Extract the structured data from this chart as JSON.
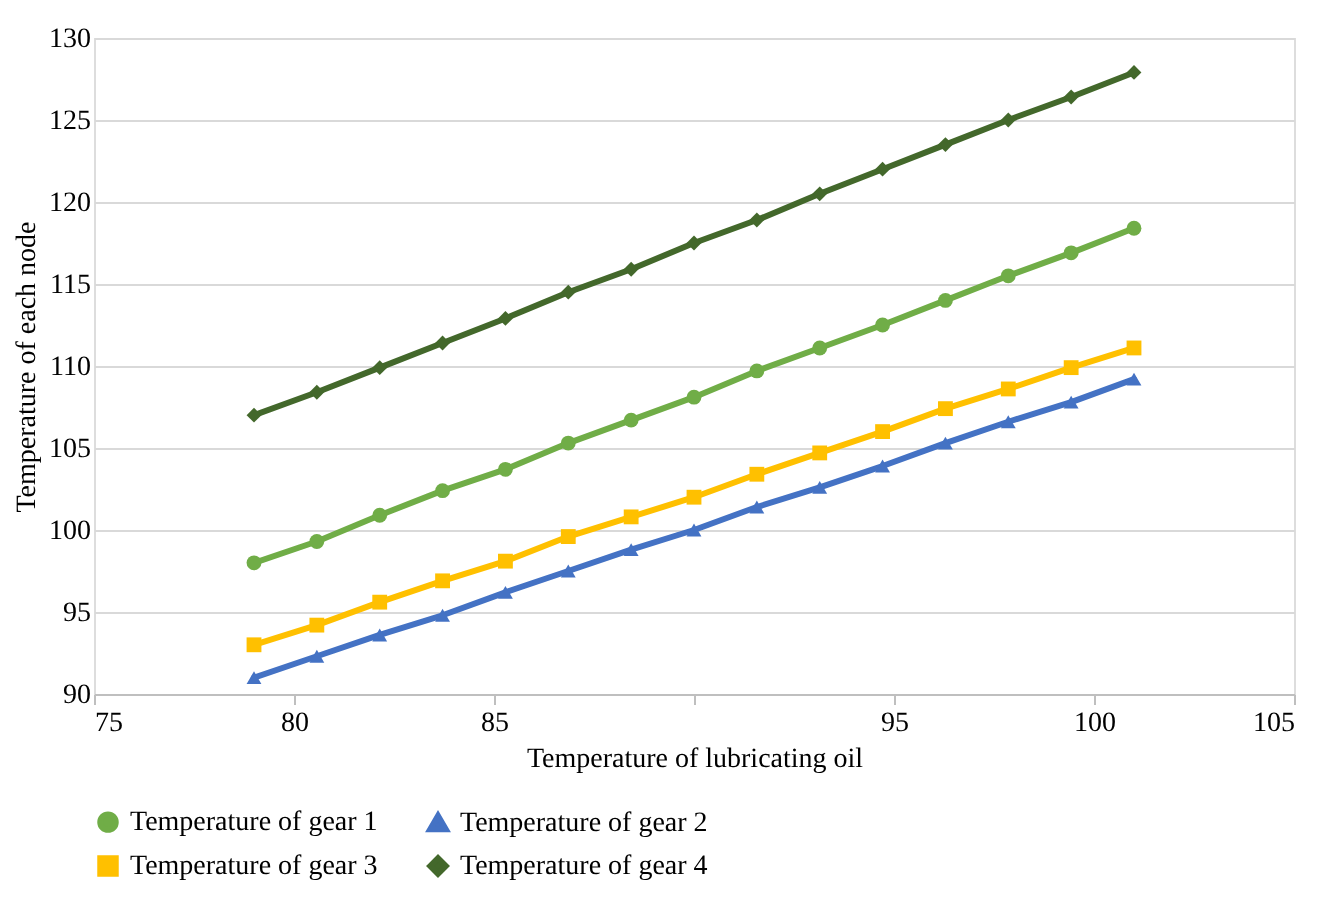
{
  "chart_data": {
    "type": "line",
    "xlabel": "Temperature of lubricating oil",
    "ylabel": "Temperature of each node",
    "x": [
      79,
      80.571,
      82.143,
      83.714,
      85.286,
      86.857,
      88.429,
      90,
      91.571,
      93.143,
      94.714,
      96.286,
      97.857,
      99.429,
      101
    ],
    "xlim": [
      75,
      105
    ],
    "xticks": [
      75,
      80,
      85,
      {
        "value": 90,
        "label": null
      },
      95,
      100,
      105
    ],
    "ylim": [
      90,
      130
    ],
    "yticks": [
      90,
      95,
      100,
      105,
      110,
      115,
      120,
      125,
      130
    ],
    "grid": "y",
    "legend": "bottom",
    "line_style": "solid",
    "series": [
      {
        "name": "Temperature of gear 1",
        "color": "#70ad47",
        "marker": "circle",
        "values": [
          98.0,
          99.3,
          100.9,
          102.4,
          103.7,
          105.3,
          106.7,
          108.1,
          109.7,
          111.1,
          112.5,
          114.0,
          115.5,
          116.9,
          118.4
        ]
      },
      {
        "name": "Temperature of gear 2",
        "color": "#4472c4",
        "marker": "triangle",
        "values": [
          91.0,
          92.3,
          93.6,
          94.8,
          96.2,
          97.5,
          98.8,
          100.0,
          101.4,
          102.6,
          103.9,
          105.3,
          106.6,
          107.8,
          109.2
        ]
      },
      {
        "name": "Temperature of gear 3",
        "color": "#ffc000",
        "marker": "square",
        "values": [
          93.0,
          94.2,
          95.6,
          96.9,
          98.1,
          99.6,
          100.8,
          102.0,
          103.4,
          104.7,
          106.0,
          107.4,
          108.6,
          109.9,
          111.1
        ]
      },
      {
        "name": "Temperature of gear 4",
        "color": "#43682b",
        "marker": "diamond",
        "values": [
          107.0,
          108.4,
          109.9,
          111.4,
          112.9,
          114.5,
          115.9,
          117.5,
          118.9,
          120.5,
          122.0,
          123.5,
          125.0,
          126.4,
          127.9
        ]
      }
    ]
  }
}
